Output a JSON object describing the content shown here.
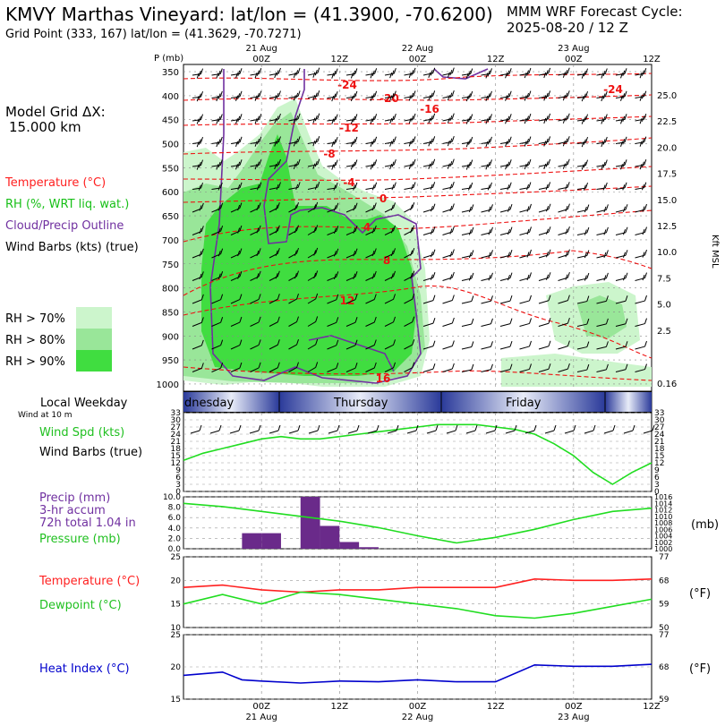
{
  "header": {
    "title": "KMVY Marthas Vineyard:  lat/lon = (41.3900, -70.6200)",
    "subtitle": "Grid Point (333, 167) lat/lon = (41.3629, -70.7271)",
    "cycle_line1": "MMM WRF Forecast Cycle:",
    "cycle_line2": "2025-08-20 / 12  Z"
  },
  "time_axis": {
    "ticks": [
      {
        "label": "00Z",
        "date": "21 Aug"
      },
      {
        "label": "12Z",
        "date": ""
      },
      {
        "label": "00Z",
        "date": "22 Aug"
      },
      {
        "label": "12Z",
        "date": ""
      },
      {
        "label": "00Z",
        "date": "23 Aug"
      },
      {
        "label": "12Z",
        "date": ""
      }
    ],
    "weekdays": [
      "dnesday",
      "Thursday",
      "Friday"
    ]
  },
  "left_panel": {
    "grid_label": "Model Grid ΔX:",
    "grid_value": "15.000 km",
    "legend": [
      {
        "text": "Temperature (°C)",
        "color": "#ff2020"
      },
      {
        "text": "RH (%, WRT liq. wat.)",
        "color": "#18c018"
      },
      {
        "text": "Cloud/Precip Outline",
        "color": "#7030a0"
      },
      {
        "text": "Wind Barbs (kts) (true)",
        "color": "#000000"
      }
    ],
    "rh_legend": [
      {
        "text": "RH > 70%",
        "color": "#ccf5cc"
      },
      {
        "text": "RH > 80%",
        "color": "#99e699"
      },
      {
        "text": "RH > 90%",
        "color": "#40dd40"
      }
    ],
    "local_weekday": "Local Weekday",
    "wind_at": "Wind at 10 m",
    "wind_spd_label": "Wind Spd (kts)",
    "wind_barbs_label": "Wind Barbs (true)",
    "precip_label": "Precip (mm)",
    "precip_accum": "3-hr accum",
    "precip_total": "72h total 1.04 in",
    "pressure_label": "Pressure (mb)",
    "temp_label": "Temperature (°C)",
    "dew_label": "Dewpoint (°C)",
    "heat_label": "Heat Index (°C)"
  },
  "right_labels": {
    "kft": "Kft MSL",
    "mb": "(mb)",
    "degf1": "(°F)",
    "degf2": "(°F)"
  },
  "chart_data": [
    {
      "type": "heatmap",
      "name": "cross-section",
      "ylabel": "P (mb)",
      "pressure_ticks": [
        350,
        400,
        450,
        500,
        550,
        600,
        650,
        700,
        750,
        800,
        850,
        900,
        950,
        1000
      ],
      "height_ticks_kft": [
        "25.0",
        "22.5",
        "20.0",
        "17.5",
        "15.0",
        "12.5",
        "10.0",
        "7.5",
        "5.0",
        "2.5",
        "0.16"
      ],
      "temperature_labels_c": [
        "-24",
        "-20",
        "-16",
        "-12",
        "-8",
        "-4",
        "0",
        "4",
        "8",
        "12",
        "16",
        "-24"
      ]
    },
    {
      "type": "line",
      "name": "wind-speed",
      "ylabel": "Wind Spd (kts)",
      "yticks": [
        0,
        3,
        6,
        9,
        12,
        15,
        18,
        21,
        24,
        27,
        30,
        33
      ],
      "ylim": [
        0,
        33
      ],
      "x_hours": [
        0,
        3,
        6,
        9,
        12,
        15,
        18,
        21,
        24,
        27,
        30,
        33,
        36,
        39,
        42,
        45,
        48,
        51,
        54,
        57,
        60,
        63,
        66,
        69,
        72
      ],
      "values": [
        13,
        16,
        18,
        20,
        22,
        23,
        22,
        22,
        23,
        24,
        25,
        26,
        27,
        28,
        28,
        28,
        27,
        26,
        24,
        20,
        15,
        8,
        3,
        8,
        12
      ],
      "color": "#20dd20"
    },
    {
      "type": "bar",
      "name": "precip",
      "ylabel": "Precip (mm)",
      "yticks": [
        0.0,
        2.0,
        4.0,
        6.0,
        8.0,
        10.0
      ],
      "ylim": [
        0,
        10
      ],
      "bars": [
        {
          "hour": 12,
          "value": 3.0
        },
        {
          "hour": 15,
          "value": 3.0
        },
        {
          "hour": 21,
          "value": 10.0
        },
        {
          "hour": 24,
          "value": 4.4
        },
        {
          "hour": 27,
          "value": 1.3
        },
        {
          "hour": 30,
          "value": 0.3
        }
      ],
      "color": "#6a2a8a"
    },
    {
      "type": "line",
      "name": "pressure",
      "ylabel": "Pressure (mb)",
      "yticks": [
        1000,
        1002,
        1004,
        1006,
        1008,
        1010,
        1012,
        1014,
        1016
      ],
      "ylim": [
        1000,
        1016
      ],
      "x_hours": [
        0,
        6,
        12,
        18,
        24,
        30,
        36,
        42,
        48,
        54,
        60,
        66,
        72
      ],
      "values": [
        1014,
        1013,
        1011.5,
        1010,
        1008.5,
        1006.5,
        1004,
        1001.8,
        1003.5,
        1006,
        1009,
        1011.5,
        1012.5
      ],
      "color": "#20dd20"
    },
    {
      "type": "line",
      "name": "temperature-dewpoint",
      "yticks": [
        10,
        15,
        20,
        25
      ],
      "ylim": [
        10,
        25
      ],
      "right_ticks_f": [
        50,
        59,
        68,
        77
      ],
      "x_hours": [
        0,
        6,
        12,
        18,
        24,
        30,
        36,
        42,
        48,
        54,
        60,
        66,
        72
      ],
      "series": [
        {
          "name": "Temperature",
          "values": [
            18.5,
            19,
            18,
            17.5,
            18,
            18,
            18.5,
            18.5,
            18.5,
            20.3,
            20,
            20,
            20.3
          ],
          "color": "#ff2020"
        },
        {
          "name": "Dewpoint",
          "values": [
            15,
            17,
            15,
            17.5,
            17,
            16,
            15,
            14,
            12.5,
            12,
            13,
            14.5,
            16
          ],
          "color": "#20dd20"
        }
      ]
    },
    {
      "type": "line",
      "name": "heat-index",
      "ylabel": "Heat Index (°C)",
      "yticks": [
        15,
        20,
        25
      ],
      "ylim": [
        15,
        25
      ],
      "right_ticks_f": [
        59,
        68,
        77
      ],
      "x_hours": [
        0,
        6,
        9,
        12,
        18,
        24,
        30,
        36,
        42,
        48,
        54,
        60,
        66,
        72
      ],
      "values": [
        18.7,
        19.2,
        18,
        17.8,
        17.5,
        17.8,
        17.7,
        18,
        17.7,
        17.7,
        20.3,
        20.1,
        20.1,
        20.4
      ],
      "color": "#0000cc"
    }
  ]
}
